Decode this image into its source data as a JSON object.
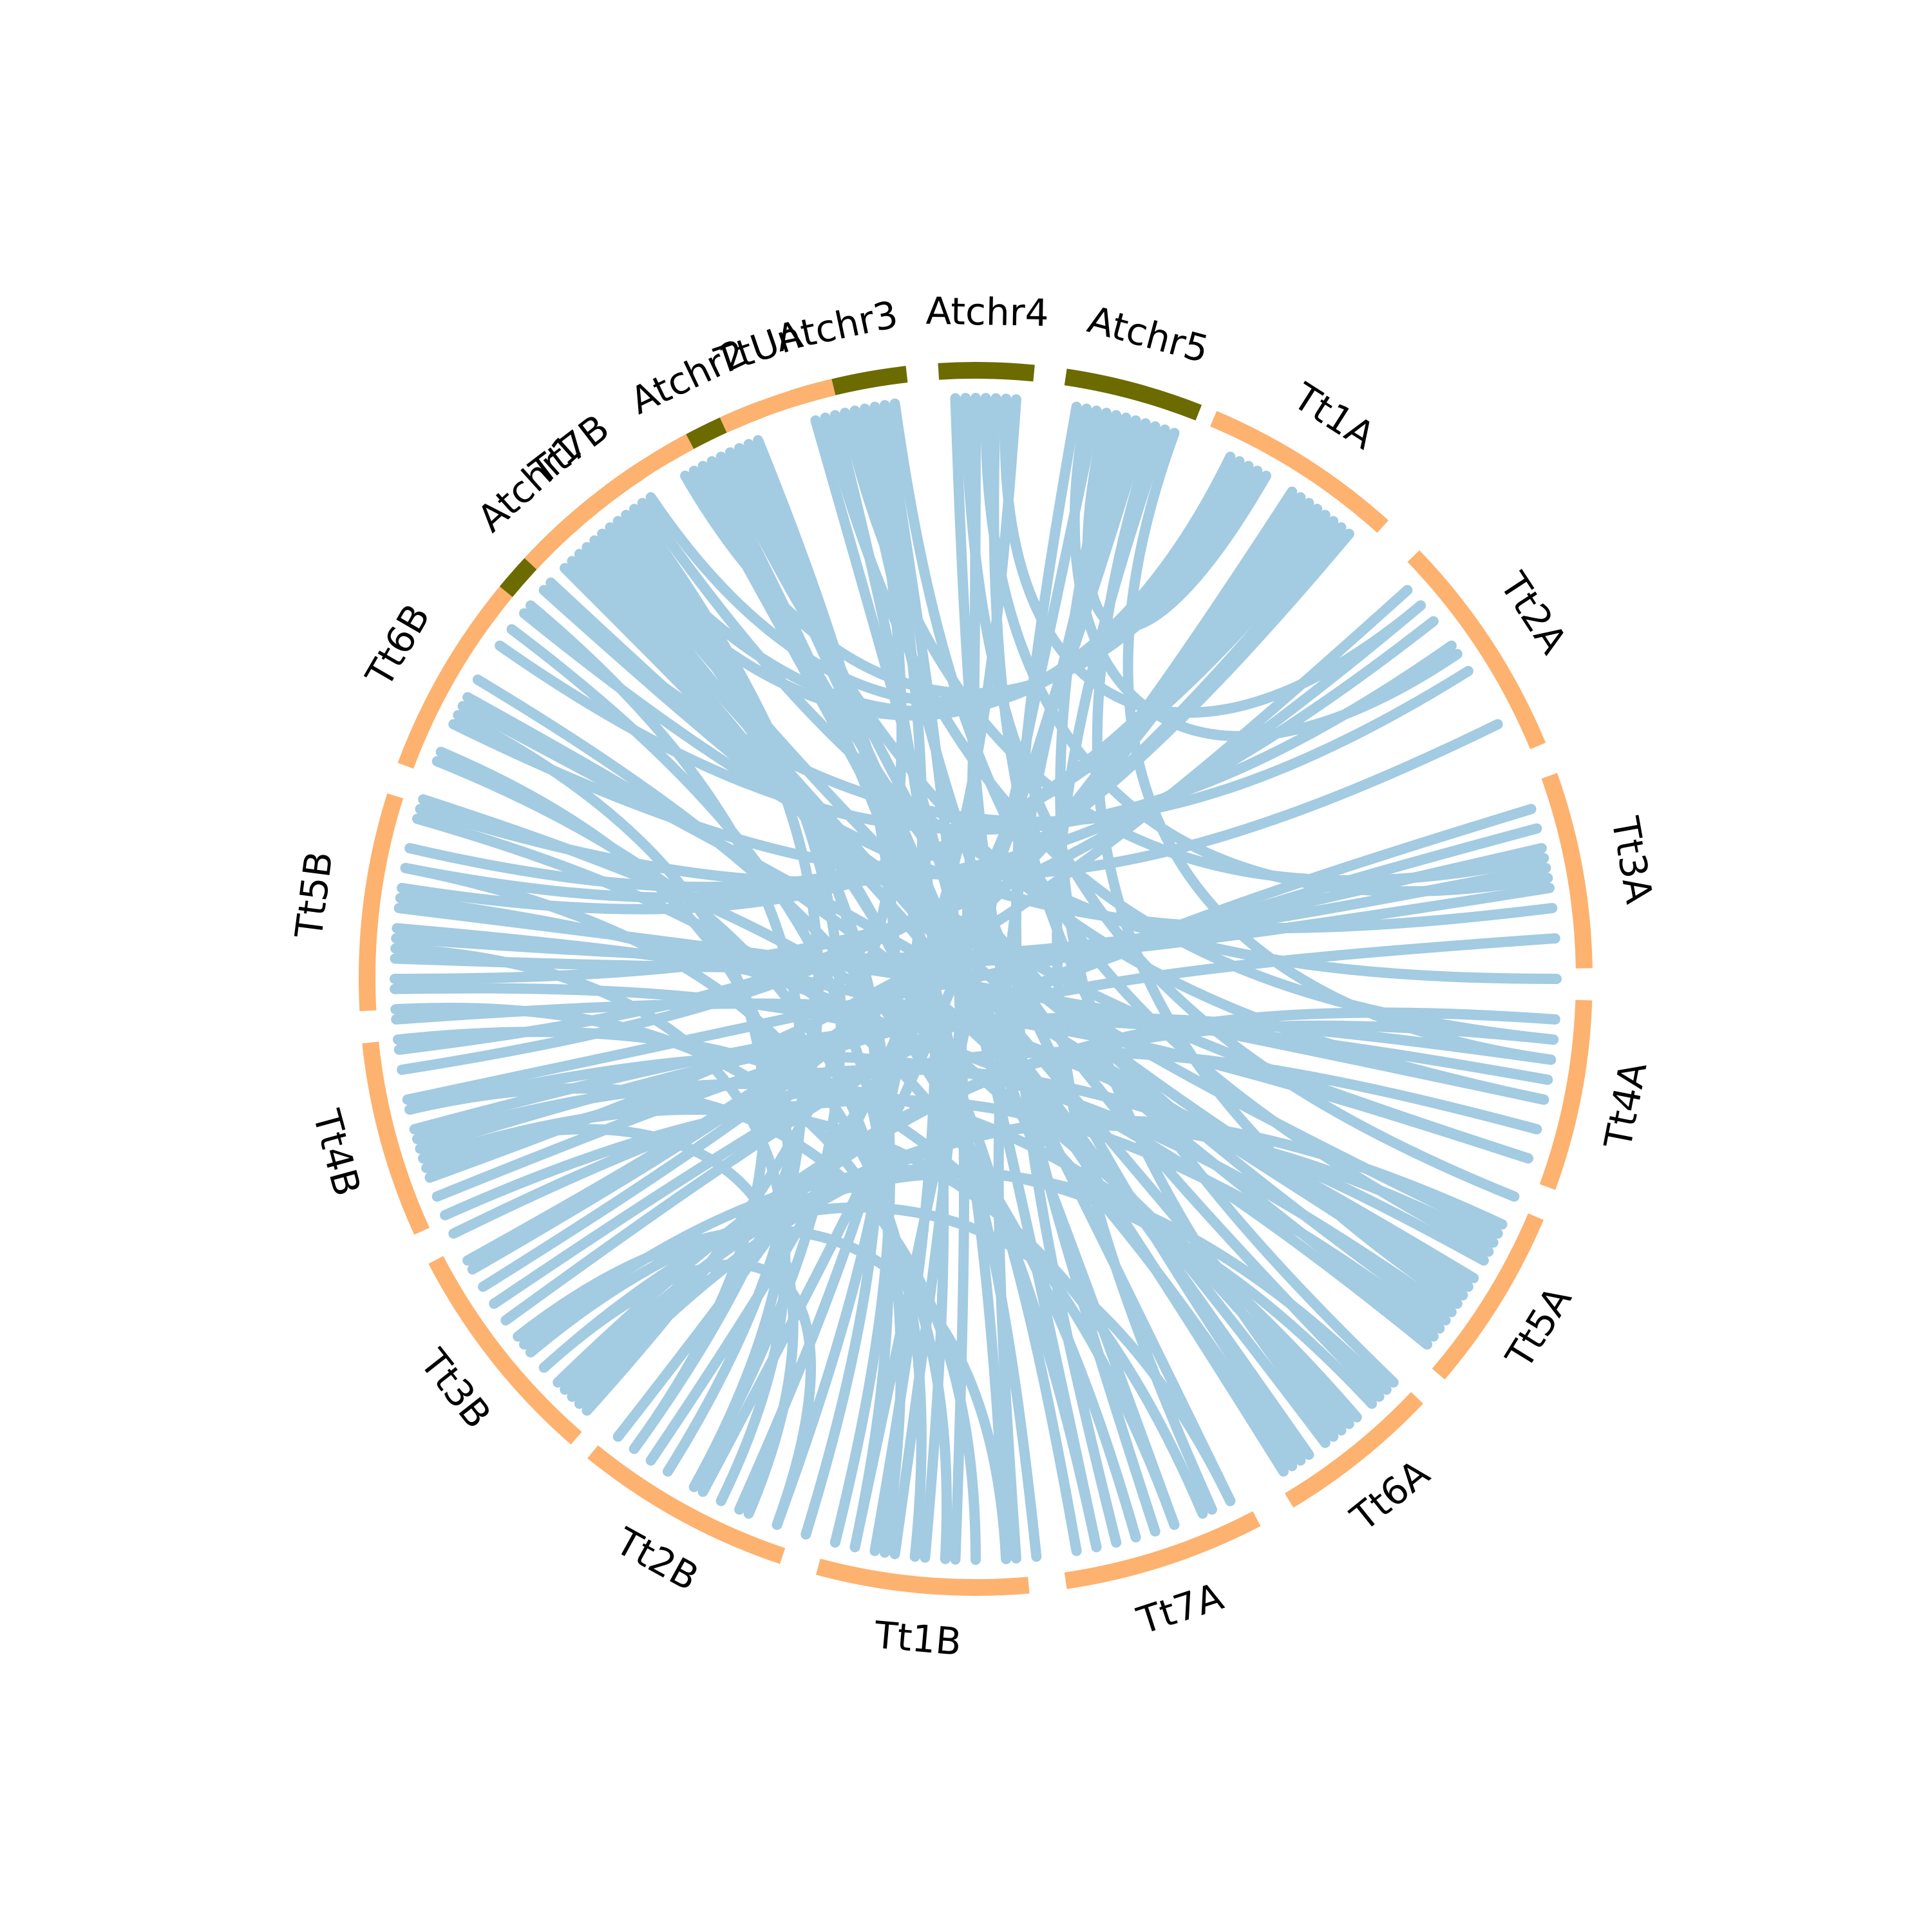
{
  "diagram": {
    "type": "circos",
    "colors": {
      "arabidopsis": "#6b6b00",
      "wheat": "#fdb26f",
      "link": "#a3cbe2",
      "label": "#000000",
      "background": "#ffffff"
    },
    "segments": [
      {
        "name": "Atchr1",
        "group": "arabidopsis",
        "start": 219.5,
        "end": 236.5
      },
      {
        "name": "Atchr2",
        "group": "arabidopsis",
        "start": 239.5,
        "end": 249.5
      },
      {
        "name": "Atchr3",
        "group": "arabidopsis",
        "start": 252.5,
        "end": 263.5
      },
      {
        "name": "Atchr4",
        "group": "arabidopsis",
        "start": 266.5,
        "end": 275.5
      },
      {
        "name": "Atchr5",
        "group": "arabidopsis",
        "start": 278.5,
        "end": 291.5
      },
      {
        "name": "Tt1A",
        "group": "wheat",
        "start": 293.0,
        "end": 312.0
      },
      {
        "name": "Tt2A",
        "group": "wheat",
        "start": 316.0,
        "end": 337.5
      },
      {
        "name": "Tt3A",
        "group": "wheat",
        "start": 340.5,
        "end": 359.0
      },
      {
        "name": "Tt4A",
        "group": "wheat",
        "start": 362.0,
        "end": 380.0
      },
      {
        "name": "Tt5A",
        "group": "wheat",
        "start": 383.0,
        "end": 400.5
      },
      {
        "name": "Tt6A",
        "group": "wheat",
        "start": 403.5,
        "end": 419.0
      },
      {
        "name": "Tt7A",
        "group": "wheat",
        "start": 422.5,
        "end": 441.5
      },
      {
        "name": "Tt1B",
        "group": "wheat",
        "start": 445.0,
        "end": 465.0
      },
      {
        "name": "Tt2B",
        "group": "wheat",
        "start": 468.5,
        "end": 489.0
      },
      {
        "name": "Tt3B",
        "group": "wheat",
        "start": 491.0,
        "end": 512.5
      },
      {
        "name": "Tt4B",
        "group": "wheat",
        "start": 515.5,
        "end": 534.0
      },
      {
        "name": "Tt5B",
        "group": "wheat",
        "start": 537.0,
        "end": 557.5
      },
      {
        "name": "Tt6B",
        "group": "wheat",
        "start": 560.5,
        "end": 579.5
      },
      {
        "name": "Tt7B",
        "group": "wheat",
        "start": 583.0,
        "end": 602.0
      },
      {
        "name": "TtUn",
        "group": "wheat",
        "start": 605.5,
        "end": 616.5
      }
    ],
    "links": [
      [
        296,
        590
      ],
      [
        297,
        592
      ],
      [
        298,
        596
      ],
      [
        299,
        600
      ],
      [
        303,
        508
      ],
      [
        304,
        510
      ],
      [
        305,
        511
      ],
      [
        306,
        549
      ],
      [
        307,
        551
      ],
      [
        308,
        553
      ],
      [
        309,
        531
      ],
      [
        310,
        533
      ],
      [
        318,
        520
      ],
      [
        320,
        540
      ],
      [
        322,
        557
      ],
      [
        325,
        575
      ],
      [
        328,
        582
      ],
      [
        334,
        566
      ],
      [
        343,
        504
      ],
      [
        345,
        506
      ],
      [
        347,
        528
      ],
      [
        349,
        544
      ],
      [
        351,
        542
      ],
      [
        353,
        579
      ],
      [
        356,
        518
      ],
      [
        364,
        494
      ],
      [
        366,
        496
      ],
      [
        368,
        523
      ],
      [
        370,
        525
      ],
      [
        372,
        547
      ],
      [
        375,
        514
      ],
      [
        378,
        536
      ],
      [
        385,
        493
      ],
      [
        387,
        495
      ],
      [
        389,
        521
      ],
      [
        391,
        545
      ],
      [
        393,
        568
      ],
      [
        395,
        527
      ],
      [
        397,
        516
      ],
      [
        399,
        539
      ],
      [
        405,
        498
      ],
      [
        407,
        501
      ],
      [
        409,
        524
      ],
      [
        411,
        548
      ],
      [
        413,
        569
      ],
      [
        415,
        585
      ],
      [
        417,
        558
      ],
      [
        424,
        500
      ],
      [
        427,
        522
      ],
      [
        430,
        534
      ],
      [
        434,
        556
      ],
      [
        438,
        571
      ],
      [
        447,
        502
      ],
      [
        450,
        527
      ],
      [
        453,
        537
      ],
      [
        456,
        551
      ],
      [
        459,
        562
      ],
      [
        462,
        577
      ],
      [
        470,
        498
      ],
      [
        473,
        522
      ],
      [
        476,
        543
      ],
      [
        479,
        563
      ],
      [
        482,
        580
      ],
      [
        486,
        567
      ],
      [
        227,
        440
      ],
      [
        229,
        444
      ],
      [
        231,
        464
      ],
      [
        232,
        467
      ],
      [
        234,
        479
      ],
      [
        226,
        418
      ],
      [
        225,
        398
      ],
      [
        223,
        386
      ],
      [
        222,
        378
      ],
      [
        228,
        410
      ],
      [
        230,
        392
      ],
      [
        233,
        486
      ],
      [
        235,
        360
      ],
      [
        241,
        424
      ],
      [
        243,
        447
      ],
      [
        245,
        430
      ],
      [
        247,
        455
      ],
      [
        242,
        396
      ],
      [
        244,
        372
      ],
      [
        246,
        406
      ],
      [
        248,
        470
      ],
      [
        254,
        438
      ],
      [
        256,
        460
      ],
      [
        258,
        416
      ],
      [
        260,
        474
      ],
      [
        262,
        388
      ],
      [
        255,
        366
      ],
      [
        257,
        348
      ],
      [
        259,
        492
      ],
      [
        261,
        452
      ],
      [
        268,
        432
      ],
      [
        270,
        458
      ],
      [
        272,
        404
      ],
      [
        274,
        484
      ],
      [
        269,
        382
      ],
      [
        271,
        350
      ],
      [
        273,
        320
      ],
      [
        280,
        436
      ],
      [
        282,
        462
      ],
      [
        284,
        412
      ],
      [
        286,
        478
      ],
      [
        288,
        394
      ],
      [
        290,
        368
      ],
      [
        281,
        326
      ],
      [
        283,
        300
      ],
      [
        285,
        446
      ],
      [
        287,
        488
      ],
      [
        289,
        426
      ]
    ]
  }
}
